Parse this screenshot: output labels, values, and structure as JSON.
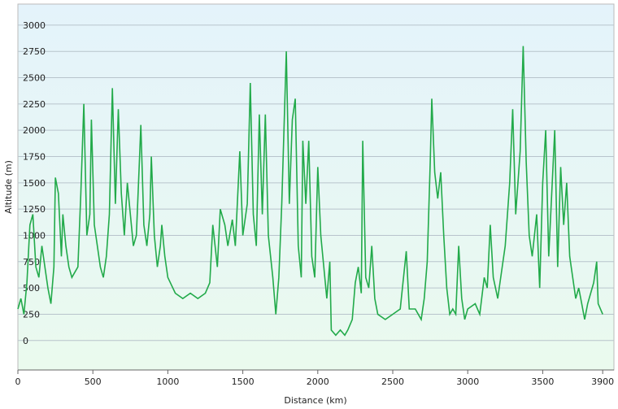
{
  "chart_data": {
    "type": "line",
    "x_label": "Distance  (km)",
    "y_label": "Altitude (m)",
    "xlim": [
      0,
      3975
    ],
    "ylim": [
      -280,
      3200
    ],
    "xticks": [
      0,
      500,
      1000,
      1500,
      2000,
      2500,
      3000,
      3500,
      3900
    ],
    "yticks": [
      0,
      250,
      500,
      750,
      1000,
      1250,
      1500,
      1750,
      2000,
      2250,
      2500,
      2750,
      3000
    ],
    "grid": true,
    "series": [
      {
        "name": "Altitude",
        "color": "#22aa4a",
        "x": [
          0,
          20,
          40,
          60,
          80,
          100,
          120,
          140,
          160,
          180,
          200,
          220,
          240,
          250,
          270,
          290,
          300,
          320,
          340,
          360,
          380,
          400,
          420,
          440,
          460,
          480,
          490,
          510,
          530,
          550,
          570,
          590,
          610,
          630,
          650,
          670,
          690,
          710,
          730,
          750,
          770,
          790,
          810,
          820,
          840,
          860,
          880,
          890,
          910,
          930,
          950,
          960,
          980,
          1000,
          1050,
          1100,
          1150,
          1200,
          1250,
          1280,
          1300,
          1330,
          1350,
          1380,
          1400,
          1430,
          1450,
          1480,
          1500,
          1530,
          1550,
          1570,
          1590,
          1610,
          1630,
          1650,
          1670,
          1700,
          1720,
          1740,
          1760,
          1790,
          1810,
          1830,
          1850,
          1870,
          1890,
          1900,
          1920,
          1940,
          1960,
          1980,
          2000,
          2020,
          2040,
          2060,
          2080,
          2090,
          2120,
          2150,
          2180,
          2200,
          2230,
          2250,
          2270,
          2290,
          2300,
          2320,
          2340,
          2360,
          2380,
          2400,
          2450,
          2500,
          2550,
          2590,
          2610,
          2650,
          2690,
          2710,
          2730,
          2750,
          2760,
          2780,
          2800,
          2820,
          2840,
          2860,
          2880,
          2900,
          2920,
          2940,
          2960,
          2980,
          3000,
          3050,
          3080,
          3110,
          3130,
          3150,
          3170,
          3200,
          3230,
          3250,
          3280,
          3300,
          3320,
          3350,
          3370,
          3390,
          3410,
          3430,
          3460,
          3480,
          3500,
          3520,
          3540,
          3560,
          3580,
          3600,
          3620,
          3640,
          3660,
          3680,
          3700,
          3720,
          3740,
          3760,
          3780,
          3800,
          3820,
          3840,
          3860,
          3870,
          3900
        ],
        "values": [
          300,
          400,
          250,
          550,
          1100,
          1200,
          700,
          600,
          900,
          700,
          500,
          350,
          700,
          1550,
          1400,
          800,
          1200,
          900,
          700,
          600,
          650,
          700,
          1400,
          2250,
          1000,
          1200,
          2100,
          1100,
          900,
          700,
          600,
          800,
          1200,
          2400,
          1300,
          2200,
          1400,
          1000,
          1500,
          1200,
          900,
          1000,
          1700,
          2050,
          1100,
          900,
          1200,
          1750,
          1000,
          700,
          900,
          1100,
          800,
          600,
          450,
          400,
          450,
          400,
          450,
          550,
          1100,
          700,
          1250,
          1100,
          900,
          1150,
          900,
          1800,
          1000,
          1300,
          2450,
          1200,
          900,
          2150,
          1200,
          2150,
          1000,
          600,
          250,
          600,
          1300,
          2750,
          1300,
          2100,
          2300,
          900,
          600,
          1900,
          1300,
          1900,
          800,
          600,
          1650,
          1000,
          700,
          400,
          750,
          100,
          50,
          100,
          50,
          100,
          200,
          550,
          700,
          450,
          1900,
          600,
          500,
          900,
          400,
          250,
          200,
          250,
          300,
          850,
          300,
          300,
          200,
          400,
          750,
          1700,
          2300,
          1600,
          1350,
          1600,
          1000,
          500,
          250,
          300,
          250,
          900,
          400,
          200,
          300,
          350,
          250,
          600,
          500,
          1100,
          600,
          400,
          700,
          900,
          1500,
          2200,
          1200,
          1800,
          2800,
          1700,
          1000,
          800,
          1200,
          500,
          1500,
          2000,
          800,
          1400,
          2000,
          700,
          1650,
          1100,
          1500,
          800,
          600,
          400,
          500,
          350,
          200,
          350,
          450,
          550,
          750,
          350,
          250
        ]
      }
    ]
  }
}
